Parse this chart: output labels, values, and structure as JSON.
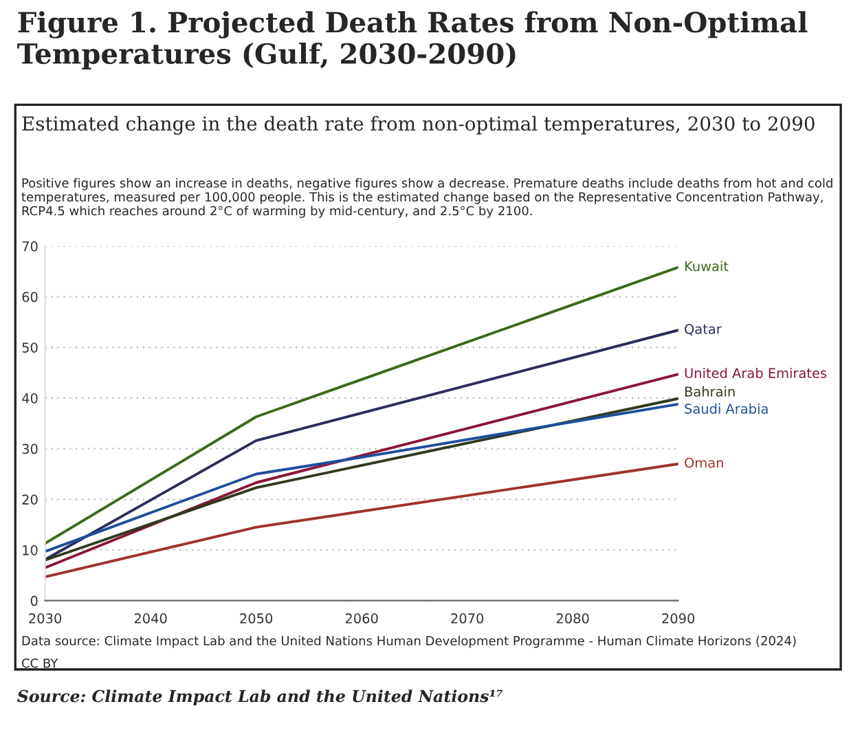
{
  "chart_data": {
    "type": "line",
    "title": "Figure 1. Projected Death Rates from Non-Optimal Temperatures (Gulf, 2030-2090)",
    "subtitle": "Estimated change in the death rate from non-optimal temperatures, 2030 to 2090",
    "annotations": [
      "Positive figures show an increase in deaths, negative figures show a decrease. Premature deaths include deaths from hot and cold temperatures, measured per 100,000 people. This is the estimated change based on the Representative Concentration Pathway, RCP4.5 which reaches around 2°C of warming by mid-century, and 2.5°C by 2100.",
      "Data source: Climate Impact Lab and the United Nations Human Development Programme - Human Climate Horizons (2024)",
      "CC BY",
      "Source: Climate Impact Lab and the United Nations¹⁷"
    ],
    "x": [
      2030,
      2050,
      2090
    ],
    "series": [
      {
        "name": "Kuwait",
        "color": "#3b6a1c",
        "values": [
          11.3,
          36.3,
          65.8
        ]
      },
      {
        "name": "Qatar",
        "color": "#2b2d5c",
        "values": [
          8.1,
          31.6,
          53.4
        ]
      },
      {
        "name": "United Arab Emirates",
        "color": "#8a1538",
        "values": [
          6.5,
          23.3,
          44.7
        ]
      },
      {
        "name": "Bahrain",
        "color": "#2f3a1f",
        "values": [
          8.0,
          22.3,
          39.9
        ]
      },
      {
        "name": "Saudi Arabia",
        "color": "#1f4e9c",
        "x": [
          2030,
          2050,
          2060,
          2090
        ],
        "values": [
          9.7,
          25.0,
          28.3,
          38.8
        ]
      },
      {
        "name": "Oman",
        "color": "#a0322c",
        "values": [
          4.7,
          14.5,
          27.0
        ]
      }
    ],
    "xlim": [
      2030,
      2090
    ],
    "xticks": [
      2030,
      2040,
      2050,
      2060,
      2070,
      2080,
      2090
    ],
    "ylim": [
      0,
      70
    ],
    "yticks": [
      0,
      10,
      20,
      30,
      40,
      50,
      60,
      70
    ],
    "grid": "y",
    "legend": false,
    "marker": "none",
    "line_style": "solid"
  }
}
